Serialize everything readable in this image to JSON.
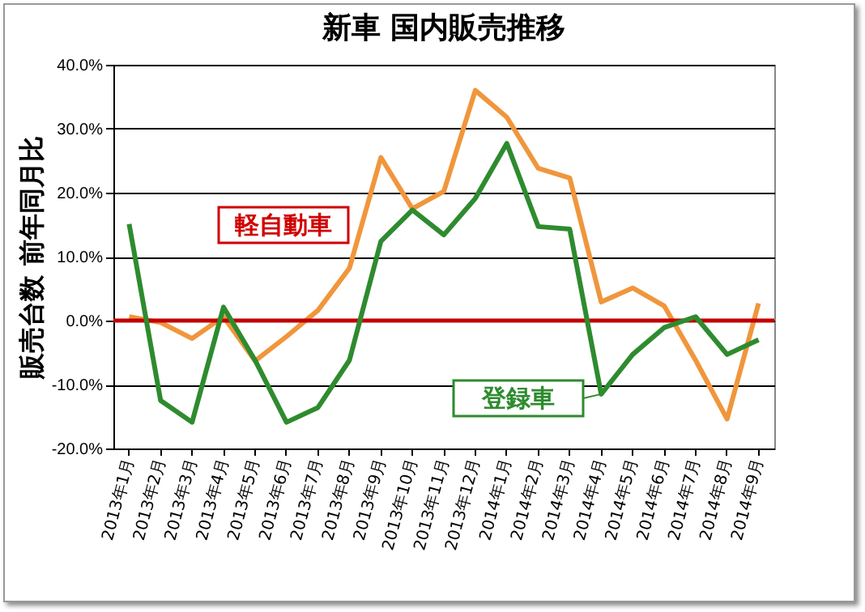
{
  "chart_data": {
    "type": "line",
    "title": "新車 国内販売推移",
    "ylabel": "販売台数 前年同月比",
    "categories": [
      "2013年1月",
      "2013年2月",
      "2013年3月",
      "2013年4月",
      "2013年5月",
      "2013年6月",
      "2013年7月",
      "2013年8月",
      "2013年9月",
      "2013年10月",
      "2013年11月",
      "2013年12月",
      "2014年1月",
      "2014年2月",
      "2014年3月",
      "2014年4月",
      "2014年5月",
      "2014年6月",
      "2014年7月",
      "2014年8月",
      "2014年9月"
    ],
    "series": [
      {
        "name": "軽自動車",
        "color": "#f0963c",
        "values": [
          0.6,
          -0.3,
          -2.8,
          0.6,
          -6.3,
          -2.5,
          1.6,
          8.2,
          25.5,
          17.5,
          20.2,
          36.0,
          31.8,
          23.8,
          22.3,
          2.9,
          5.1,
          2.3,
          -6.2,
          -15.4,
          2.7
        ]
      },
      {
        "name": "登録車",
        "color": "#2e8b2e",
        "values": [
          15.1,
          -12.5,
          -15.9,
          2.1,
          -6.2,
          -15.9,
          -13.6,
          -6.2,
          12.4,
          17.3,
          13.4,
          19.1,
          27.7,
          14.7,
          14.3,
          -11.5,
          -5.3,
          -1.1,
          0.6,
          -5.3,
          -3.0
        ]
      }
    ],
    "ylim": [
      -20,
      40
    ],
    "yticks": [
      {
        "value": -20,
        "label": "-20.0%"
      },
      {
        "value": -10,
        "label": "-10.0%"
      },
      {
        "value": 0,
        "label": "0.0%"
      },
      {
        "value": 10,
        "label": "10.0%"
      },
      {
        "value": 20,
        "label": "20.0%"
      },
      {
        "value": 30,
        "label": "30.0%"
      },
      {
        "value": 40,
        "label": "40.0%"
      }
    ],
    "ref_lines": [
      {
        "axis": "y",
        "value": 0,
        "color": "#c00000"
      }
    ],
    "grid": "y",
    "marker": "none",
    "line_style": "solid"
  }
}
